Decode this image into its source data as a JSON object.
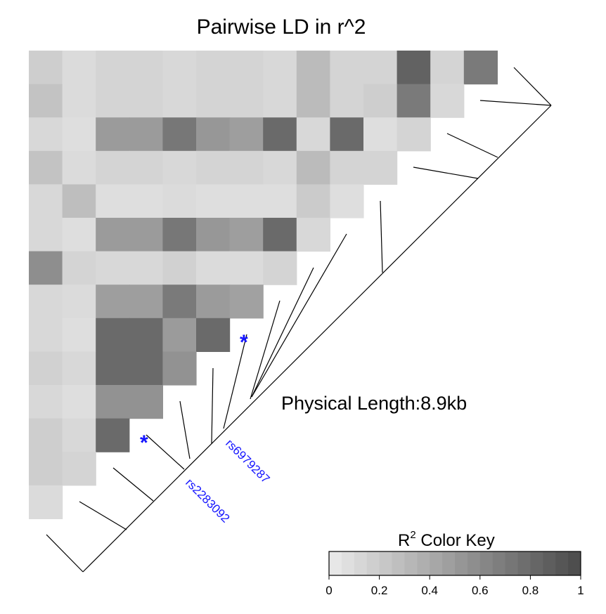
{
  "chart_data": {
    "type": "heatmap",
    "title": "Pairwise LD in r^2",
    "physical_length_label": "Physical Length:8.9kb",
    "matrix": [
      [
        0.18,
        0.1,
        0.14,
        0.14,
        0.12,
        0.14,
        0.14,
        0.12,
        0.3,
        0.14,
        0.14,
        0.85,
        0.14,
        0.7
      ],
      [
        0.25,
        0.1,
        0.14,
        0.14,
        0.12,
        0.14,
        0.14,
        0.12,
        0.3,
        0.14,
        0.18,
        0.7,
        0.12
      ],
      [
        0.12,
        0.08,
        0.5,
        0.5,
        0.72,
        0.52,
        0.48,
        0.8,
        0.12,
        0.8,
        0.08,
        0.14
      ],
      [
        0.25,
        0.1,
        0.14,
        0.14,
        0.12,
        0.14,
        0.14,
        0.12,
        0.3,
        0.14,
        0.14
      ],
      [
        0.12,
        0.28,
        0.08,
        0.08,
        0.1,
        0.08,
        0.08,
        0.08,
        0.2,
        0.08
      ],
      [
        0.12,
        0.08,
        0.5,
        0.5,
        0.72,
        0.52,
        0.48,
        0.8,
        0.12
      ],
      [
        0.58,
        0.14,
        0.12,
        0.12,
        0.16,
        0.1,
        0.1,
        0.14
      ],
      [
        0.12,
        0.1,
        0.48,
        0.48,
        0.7,
        0.5,
        0.46
      ],
      [
        0.12,
        0.08,
        0.8,
        0.8,
        0.5,
        0.8
      ],
      [
        0.16,
        0.12,
        0.8,
        0.8,
        0.55
      ],
      [
        0.12,
        0.08,
        0.55,
        0.55
      ],
      [
        0.18,
        0.12,
        0.8
      ],
      [
        0.18,
        0.14
      ],
      [
        0.1
      ]
    ],
    "highlighted_snps": [
      "rs6979287",
      "rs2283092"
    ],
    "marker_symbol": "*",
    "color_key": {
      "title": "R",
      "title_superscript": "2",
      "title_suffix": " Color Key",
      "ticks": [
        "0",
        "0.2",
        "0.4",
        "0.6",
        "0.8",
        "1"
      ],
      "range": [
        0,
        1
      ],
      "colors": {
        "low": "#ebebeb",
        "high": "#4a4a4a"
      }
    },
    "colors": {
      "snp_label": "#1414ff",
      "line": "#000000"
    }
  }
}
